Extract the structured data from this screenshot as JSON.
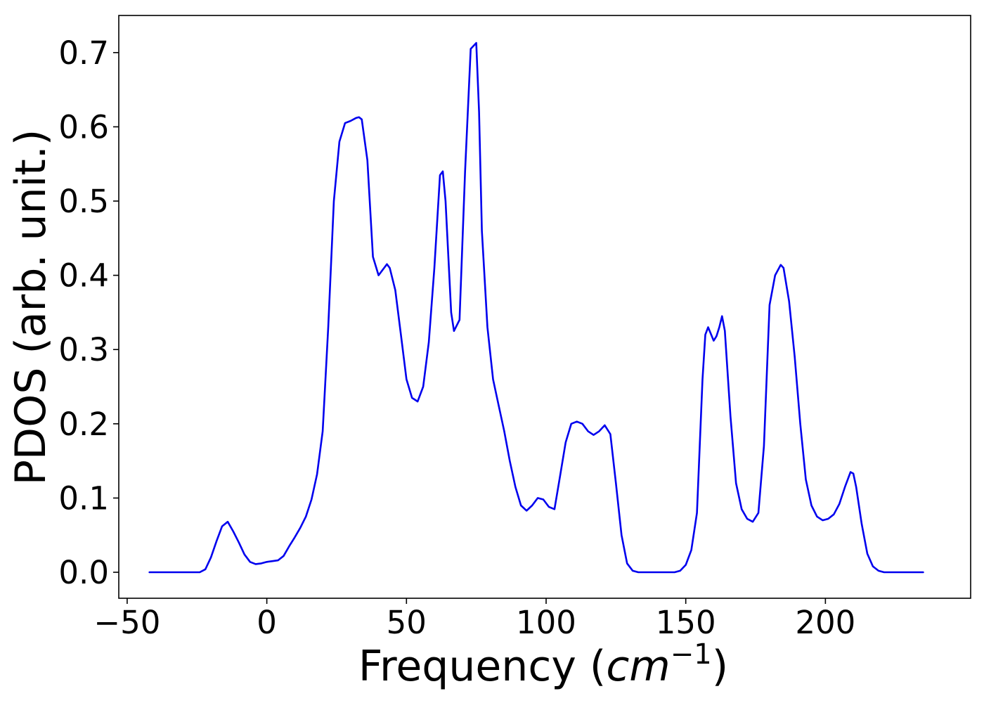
{
  "chart_data": {
    "type": "line",
    "title": "",
    "xlabel": "Frequency (",
    "xlabel_math": "cm",
    "xlabel_sup": "−1",
    "xlabel_close": ")",
    "ylabel": "PDOS (arb. unit.)",
    "xlim": [
      -53,
      252
    ],
    "ylim": [
      -0.035,
      0.75
    ],
    "xticks": [
      -50,
      0,
      50,
      100,
      150,
      200
    ],
    "xtick_labels": [
      "−50",
      "0",
      "50",
      "100",
      "150",
      "200"
    ],
    "yticks": [
      0.0,
      0.1,
      0.2,
      0.3,
      0.4,
      0.5,
      0.6,
      0.7
    ],
    "ytick_labels": [
      "0.0",
      "0.1",
      "0.2",
      "0.3",
      "0.4",
      "0.5",
      "0.6",
      "0.7"
    ],
    "grid": false,
    "series": [
      {
        "color": "#0000ee",
        "x": [
          -42,
          -24,
          -22,
          -20,
          -18,
          -16,
          -14,
          -12,
          -10,
          -8,
          -6,
          -4,
          -2,
          0,
          2,
          4,
          6,
          8,
          10,
          12,
          14,
          16,
          18,
          20,
          22,
          24,
          26,
          28,
          30,
          32,
          33,
          34,
          36,
          38,
          40,
          42,
          43,
          44,
          46,
          48,
          50,
          52,
          54,
          56,
          58,
          60,
          62,
          63,
          64,
          66,
          67,
          69,
          71,
          73,
          75,
          76,
          77,
          79,
          81,
          83,
          85,
          87,
          89,
          91,
          93,
          95,
          97,
          99,
          101,
          103,
          105,
          107,
          109,
          111,
          113,
          115,
          117,
          119,
          121,
          123,
          125,
          127,
          129,
          131,
          133,
          140,
          146,
          148,
          150,
          152,
          154,
          156,
          157,
          158,
          160,
          161,
          162,
          163,
          164,
          166,
          168,
          170,
          172,
          174,
          176,
          178,
          180,
          182,
          184,
          185,
          187,
          189,
          191,
          193,
          195,
          197,
          199,
          201,
          203,
          205,
          207,
          209,
          210,
          211,
          213,
          215,
          217,
          219,
          221,
          223,
          235
        ],
        "y": [
          0.0,
          0.0,
          0.004,
          0.02,
          0.042,
          0.062,
          0.068,
          0.055,
          0.04,
          0.024,
          0.014,
          0.011,
          0.012,
          0.014,
          0.015,
          0.016,
          0.022,
          0.035,
          0.047,
          0.06,
          0.075,
          0.098,
          0.132,
          0.19,
          0.33,
          0.5,
          0.58,
          0.605,
          0.608,
          0.612,
          0.613,
          0.61,
          0.555,
          0.425,
          0.4,
          0.41,
          0.415,
          0.41,
          0.38,
          0.32,
          0.26,
          0.235,
          0.23,
          0.25,
          0.31,
          0.41,
          0.535,
          0.54,
          0.5,
          0.35,
          0.325,
          0.34,
          0.54,
          0.705,
          0.713,
          0.62,
          0.46,
          0.33,
          0.26,
          0.225,
          0.19,
          0.15,
          0.115,
          0.09,
          0.083,
          0.09,
          0.1,
          0.098,
          0.088,
          0.085,
          0.13,
          0.175,
          0.2,
          0.203,
          0.2,
          0.19,
          0.185,
          0.19,
          0.198,
          0.186,
          0.12,
          0.05,
          0.012,
          0.002,
          0.0,
          0.0,
          0.0,
          0.002,
          0.01,
          0.03,
          0.08,
          0.26,
          0.32,
          0.33,
          0.312,
          0.318,
          0.33,
          0.345,
          0.325,
          0.21,
          0.12,
          0.085,
          0.072,
          0.068,
          0.08,
          0.17,
          0.36,
          0.4,
          0.414,
          0.41,
          0.365,
          0.29,
          0.2,
          0.125,
          0.09,
          0.075,
          0.07,
          0.072,
          0.078,
          0.092,
          0.115,
          0.135,
          0.133,
          0.115,
          0.065,
          0.025,
          0.008,
          0.002,
          0.0,
          0.0,
          0.0
        ]
      }
    ]
  }
}
